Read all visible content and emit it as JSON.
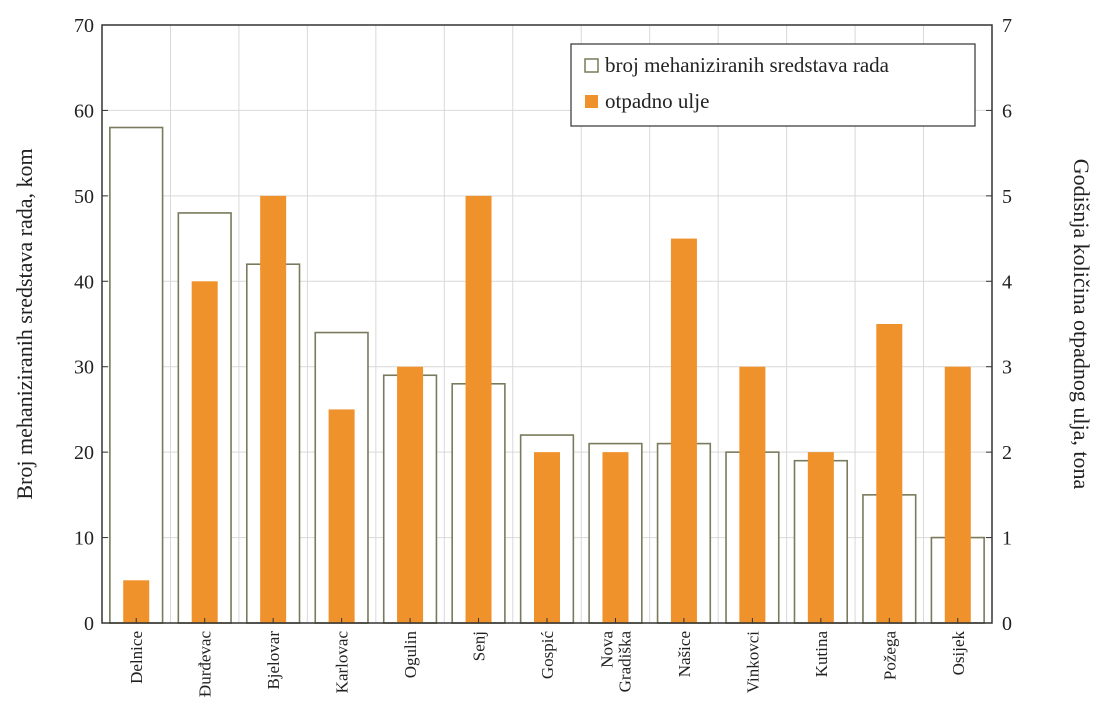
{
  "chart_data": {
    "type": "bar",
    "categories": [
      "Delnice",
      "Đurđevac",
      "Bjelovar",
      "Karlovac",
      "Ogulin",
      "Senj",
      "Gospić",
      "Nova Gradiška",
      "Našice",
      "Vinkovci",
      "Kutina",
      "Požega",
      "Osijek"
    ],
    "series": [
      {
        "name": "broj mehaniziranih sredstava rada",
        "axis": "left",
        "style": "outline",
        "color": "#7a7a5c",
        "values": [
          58,
          48,
          42,
          34,
          29,
          28,
          22,
          21,
          21,
          20,
          19,
          15,
          10
        ]
      },
      {
        "name": "otpadno ulje",
        "axis": "right",
        "style": "filled",
        "color": "#f0922b",
        "values": [
          0.5,
          4,
          5,
          2.5,
          3,
          5,
          2,
          2,
          4.5,
          3,
          2,
          3.5,
          3
        ]
      }
    ],
    "ylabel": "Broj mehaniziranih sredstava rada, kom",
    "ylabel_right": "Godišnja količina otpadnog ulja, tona",
    "ylim": [
      0,
      70
    ],
    "ylim_right": [
      0,
      7
    ],
    "yticks": [
      0,
      10,
      20,
      30,
      40,
      50,
      60,
      70
    ],
    "yticks_right": [
      0,
      1,
      2,
      3,
      4,
      5,
      6,
      7
    ],
    "grid": true,
    "legend_position": "top-right"
  }
}
